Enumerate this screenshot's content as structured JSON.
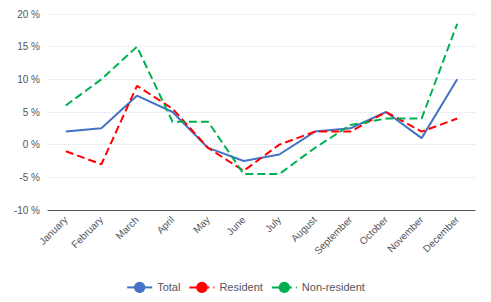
{
  "chart_data": {
    "type": "line",
    "categories": [
      "January",
      "February",
      "March",
      "April",
      "May",
      "June",
      "July",
      "August",
      "September",
      "October",
      "November",
      "December"
    ],
    "series": [
      {
        "name": "Total",
        "color": "#4472C4",
        "line_style": "solid",
        "values": [
          2.0,
          2.5,
          7.5,
          5.0,
          -0.5,
          -2.5,
          -1.5,
          2.0,
          2.5,
          5.0,
          1.0,
          10.0
        ]
      },
      {
        "name": "Resident",
        "color": "#FF0000",
        "line_style": "dashed",
        "values": [
          -1.0,
          -3.0,
          9.0,
          5.5,
          -0.5,
          -4.0,
          0.0,
          2.0,
          2.0,
          5.0,
          2.0,
          4.0
        ]
      },
      {
        "name": "Non-resident",
        "color": "#00B050",
        "line_style": "dashed",
        "values": [
          6.0,
          10.0,
          15.0,
          3.5,
          3.5,
          -4.5,
          -4.5,
          -0.5,
          3.0,
          4.0,
          4.0,
          18.5
        ]
      }
    ],
    "ylim": [
      -10,
      20
    ],
    "yticks": [
      {
        "value": -10,
        "label": "-10 %"
      },
      {
        "value": -5,
        "label": "-5 %"
      },
      {
        "value": 0,
        "label": "0 %"
      },
      {
        "value": 5,
        "label": "5 %"
      },
      {
        "value": 10,
        "label": "10 %"
      },
      {
        "value": 15,
        "label": "15 %"
      },
      {
        "value": 20,
        "label": "20 %"
      }
    ],
    "grid": true,
    "legend": "lower center"
  }
}
